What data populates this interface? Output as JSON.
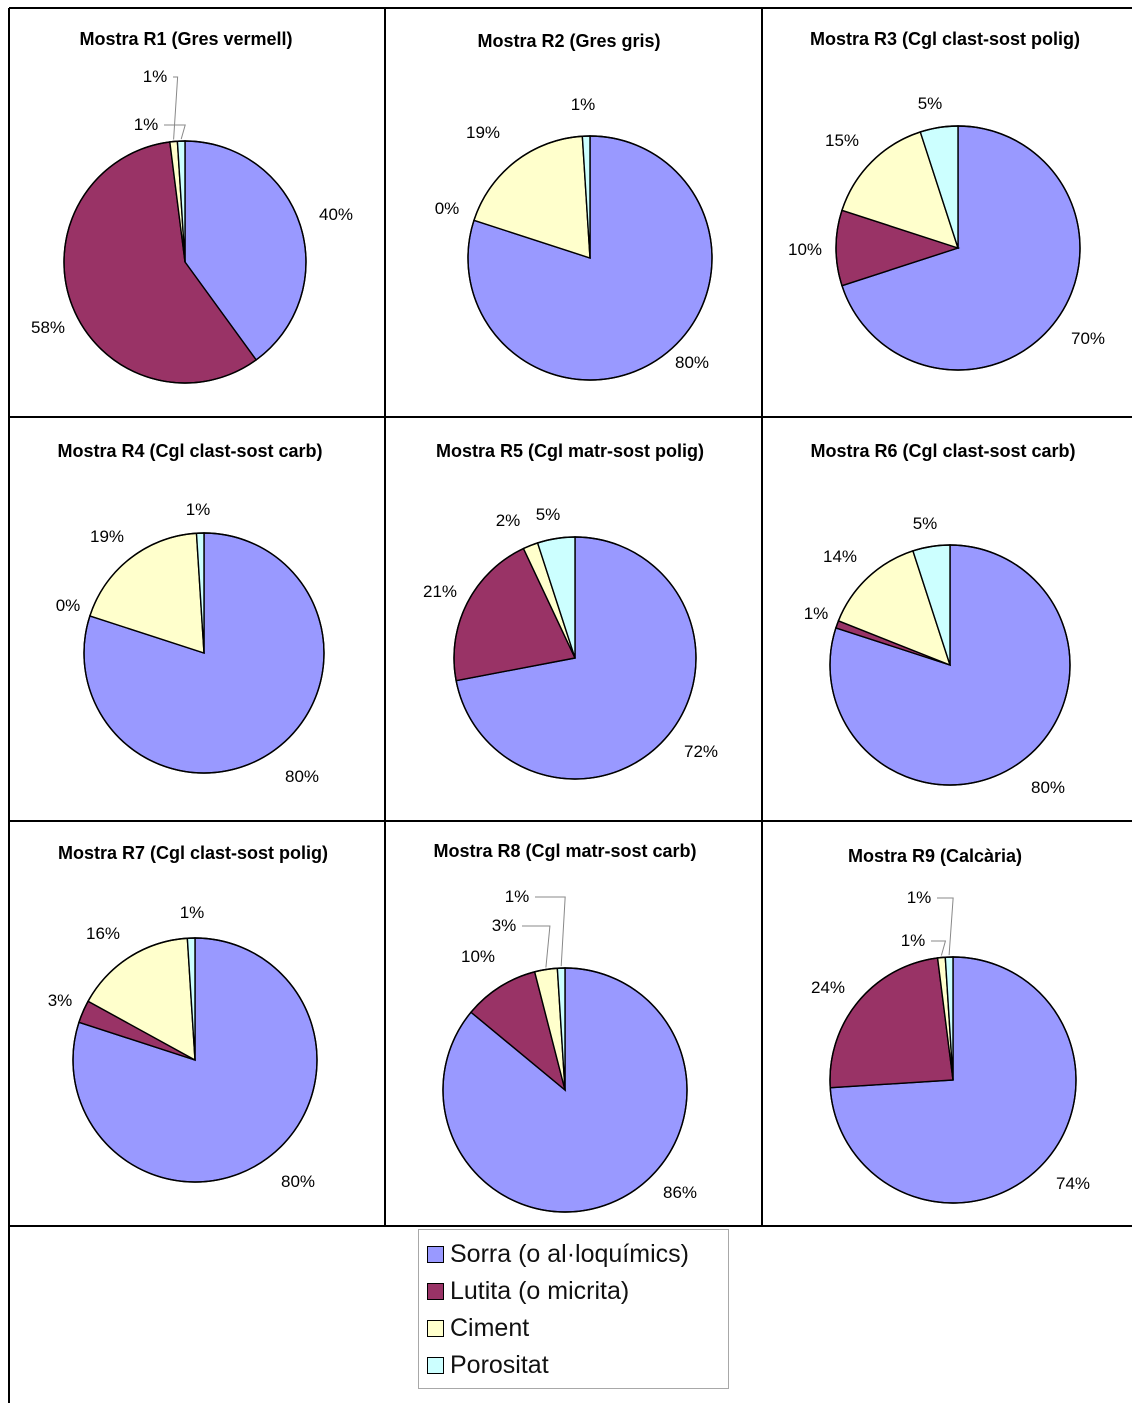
{
  "legend": [
    {
      "label": "Sorra (o al·loquímics)",
      "color": "#9999ff"
    },
    {
      "label": "Lutita (o micrita)",
      "color": "#993366"
    },
    {
      "label": "Ciment",
      "color": "#ffffcc"
    },
    {
      "label": "Porositat",
      "color": "#ccffff"
    }
  ],
  "chart_data": [
    {
      "type": "pie",
      "title": "Mostra R1 (Gres vermell)",
      "categories": [
        "Sorra (o al·loquímics)",
        "Lutita (o micrita)",
        "Ciment",
        "Porositat"
      ],
      "values": [
        40,
        58,
        1,
        1
      ],
      "labels": [
        "40%",
        "58%",
        "1%",
        "1%"
      ]
    },
    {
      "type": "pie",
      "title": "Mostra R2 (Gres gris)",
      "categories": [
        "Sorra (o al·loquímics)",
        "Lutita (o micrita)",
        "Ciment",
        "Porositat"
      ],
      "values": [
        80,
        0,
        19,
        1
      ],
      "labels": [
        "80%",
        "0%",
        "19%",
        "1%"
      ]
    },
    {
      "type": "pie",
      "title": "Mostra R3 (Cgl clast-sost polig)",
      "categories": [
        "Sorra (o al·loquímics)",
        "Lutita (o micrita)",
        "Ciment",
        "Porositat"
      ],
      "values": [
        70,
        10,
        15,
        5
      ],
      "labels": [
        "70%",
        "10%",
        "15%",
        "5%"
      ]
    },
    {
      "type": "pie",
      "title": "Mostra R4 (Cgl clast-sost carb)",
      "categories": [
        "Sorra (o al·loquímics)",
        "Lutita (o micrita)",
        "Ciment",
        "Porositat"
      ],
      "values": [
        80,
        0,
        19,
        1
      ],
      "labels": [
        "80%",
        "0%",
        "19%",
        "1%"
      ]
    },
    {
      "type": "pie",
      "title": "Mostra R5 (Cgl matr-sost polig)",
      "categories": [
        "Sorra (o al·loquímics)",
        "Lutita (o micrita)",
        "Ciment",
        "Porositat"
      ],
      "values": [
        72,
        21,
        2,
        5
      ],
      "labels": [
        "72%",
        "21%",
        "2%",
        "5%"
      ]
    },
    {
      "type": "pie",
      "title": "Mostra R6 (Cgl clast-sost carb)",
      "categories": [
        "Sorra (o al·loquímics)",
        "Lutita (o micrita)",
        "Ciment",
        "Porositat"
      ],
      "values": [
        80,
        1,
        14,
        5
      ],
      "labels": [
        "80%",
        "1%",
        "14%",
        "5%"
      ]
    },
    {
      "type": "pie",
      "title": "Mostra R7 (Cgl clast-sost polig)",
      "categories": [
        "Sorra (o al·loquímics)",
        "Lutita (o micrita)",
        "Ciment",
        "Porositat"
      ],
      "values": [
        80,
        3,
        16,
        1
      ],
      "labels": [
        "80%",
        "3%",
        "16%",
        "1%"
      ]
    },
    {
      "type": "pie",
      "title": "Mostra R8 (Cgl matr-sost carb)",
      "categories": [
        "Sorra (o al·loquímics)",
        "Lutita (o micrita)",
        "Ciment",
        "Porositat"
      ],
      "values": [
        86,
        10,
        3,
        1
      ],
      "labels": [
        "86%",
        "10%",
        "3%",
        "1%"
      ]
    },
    {
      "type": "pie",
      "title": "Mostra R9 (Calcària)",
      "categories": [
        "Sorra (o al·loquímics)",
        "Lutita (o micrita)",
        "Ciment",
        "Porositat"
      ],
      "values": [
        74,
        24,
        1,
        1
      ],
      "labels": [
        "74%",
        "24%",
        "1%",
        "1%"
      ]
    }
  ]
}
